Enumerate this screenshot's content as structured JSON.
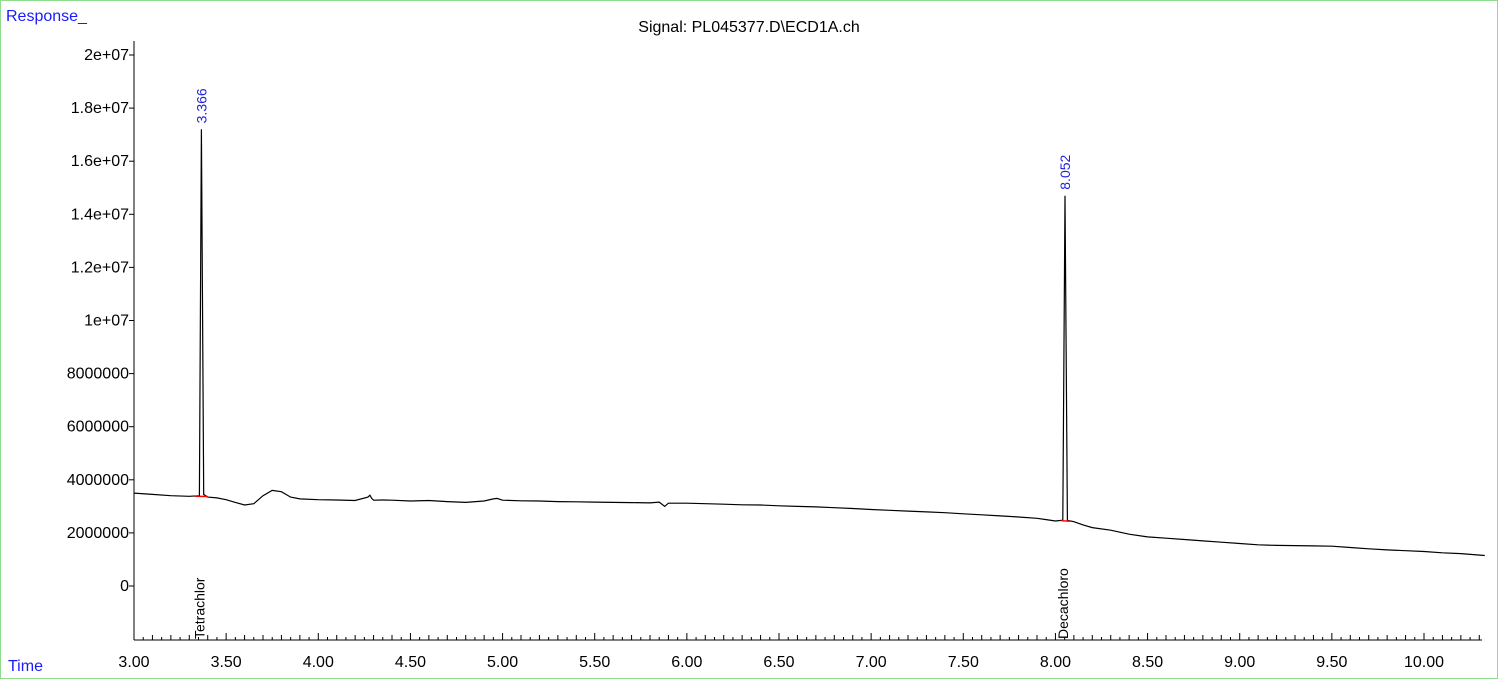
{
  "chart_data": {
    "type": "line",
    "title": "Signal: PL045377.D\\ECD1A.ch",
    "ylabel": "Response_",
    "xlabel": "Time",
    "xlim": [
      3.0,
      10.33
    ],
    "ylim": [
      -2000000,
      20500000
    ],
    "x_ticks": [
      "3.00",
      "3.50",
      "4.00",
      "4.50",
      "5.00",
      "5.50",
      "6.00",
      "6.50",
      "7.00",
      "7.50",
      "8.00",
      "8.50",
      "9.00",
      "9.50",
      "10.00"
    ],
    "x_tick_values": [
      3.0,
      3.5,
      4.0,
      4.5,
      5.0,
      5.5,
      6.0,
      6.5,
      7.0,
      7.5,
      8.0,
      8.5,
      9.0,
      9.5,
      10.0
    ],
    "y_ticks": [
      "0",
      "2000000",
      "4000000",
      "6000000",
      "8000000",
      "1e+07",
      "1.2e+07",
      "1.4e+07",
      "1.6e+07",
      "1.8e+07",
      "2e+07"
    ],
    "y_tick_values": [
      0,
      2000000,
      4000000,
      6000000,
      8000000,
      10000000,
      12000000,
      14000000,
      16000000,
      18000000,
      20000000
    ],
    "series": [
      {
        "x": [
          3.0,
          3.1,
          3.2,
          3.3,
          3.355,
          3.366,
          3.378,
          3.4,
          3.45,
          3.5,
          3.55,
          3.6,
          3.65,
          3.7,
          3.75,
          3.8,
          3.85,
          3.9,
          4.0,
          4.1,
          4.2,
          4.27,
          4.28,
          4.29,
          4.3,
          4.35,
          4.4,
          4.5,
          4.6,
          4.7,
          4.8,
          4.9,
          4.95,
          4.97,
          5.0,
          5.1,
          5.2,
          5.3,
          5.4,
          5.5,
          5.6,
          5.7,
          5.8,
          5.85,
          5.88,
          5.9,
          6.0,
          6.1,
          6.2,
          6.3,
          6.4,
          6.5,
          6.6,
          6.7,
          6.8,
          6.9,
          7.0,
          7.1,
          7.2,
          7.3,
          7.4,
          7.5,
          7.6,
          7.7,
          7.8,
          7.9,
          7.95,
          8.0,
          8.04,
          8.052,
          8.065,
          8.1,
          8.15,
          8.2,
          8.3,
          8.4,
          8.5,
          8.6,
          8.7,
          8.8,
          8.9,
          9.0,
          9.1,
          9.2,
          9.3,
          9.4,
          9.5,
          9.6,
          9.7,
          9.8,
          9.9,
          10.0,
          10.1,
          10.2,
          10.33
        ],
        "y": [
          3500000,
          3450000,
          3400000,
          3380000,
          3400000,
          17200000,
          3450000,
          3350000,
          3320000,
          3250000,
          3150000,
          3050000,
          3100000,
          3400000,
          3600000,
          3550000,
          3350000,
          3280000,
          3250000,
          3240000,
          3220000,
          3350000,
          3420000,
          3300000,
          3230000,
          3240000,
          3230000,
          3200000,
          3220000,
          3180000,
          3150000,
          3200000,
          3280000,
          3300000,
          3230000,
          3210000,
          3200000,
          3180000,
          3170000,
          3160000,
          3150000,
          3140000,
          3130000,
          3160000,
          3000000,
          3120000,
          3120000,
          3100000,
          3080000,
          3060000,
          3050000,
          3020000,
          3000000,
          2980000,
          2950000,
          2920000,
          2880000,
          2850000,
          2820000,
          2790000,
          2760000,
          2720000,
          2680000,
          2640000,
          2600000,
          2550000,
          2500000,
          2450000,
          2480000,
          14700000,
          2470000,
          2420000,
          2300000,
          2200000,
          2100000,
          1950000,
          1850000,
          1800000,
          1750000,
          1700000,
          1650000,
          1600000,
          1550000,
          1530000,
          1520000,
          1510000,
          1500000,
          1450000,
          1400000,
          1360000,
          1330000,
          1300000,
          1250000,
          1220000,
          1150000
        ]
      }
    ],
    "peaks": [
      {
        "rt": "3.366",
        "rt_value": 3.366,
        "height": 17200000,
        "baseline": [
          3.33,
          3.4,
          3380000,
          3370000
        ],
        "compound": "Tetrachlor"
      },
      {
        "rt": "8.052",
        "rt_value": 8.052,
        "height": 14700000,
        "baseline": [
          8.03,
          8.08,
          2460000,
          2440000
        ],
        "compound": "Decachloro"
      }
    ],
    "grid": false,
    "legend": "none",
    "colors": {
      "trace": "#000000",
      "peak_label": "#2222dd",
      "axis_label": "#1a1aff",
      "baseline": "#ff0000",
      "frame": "#8fdc8f"
    }
  }
}
